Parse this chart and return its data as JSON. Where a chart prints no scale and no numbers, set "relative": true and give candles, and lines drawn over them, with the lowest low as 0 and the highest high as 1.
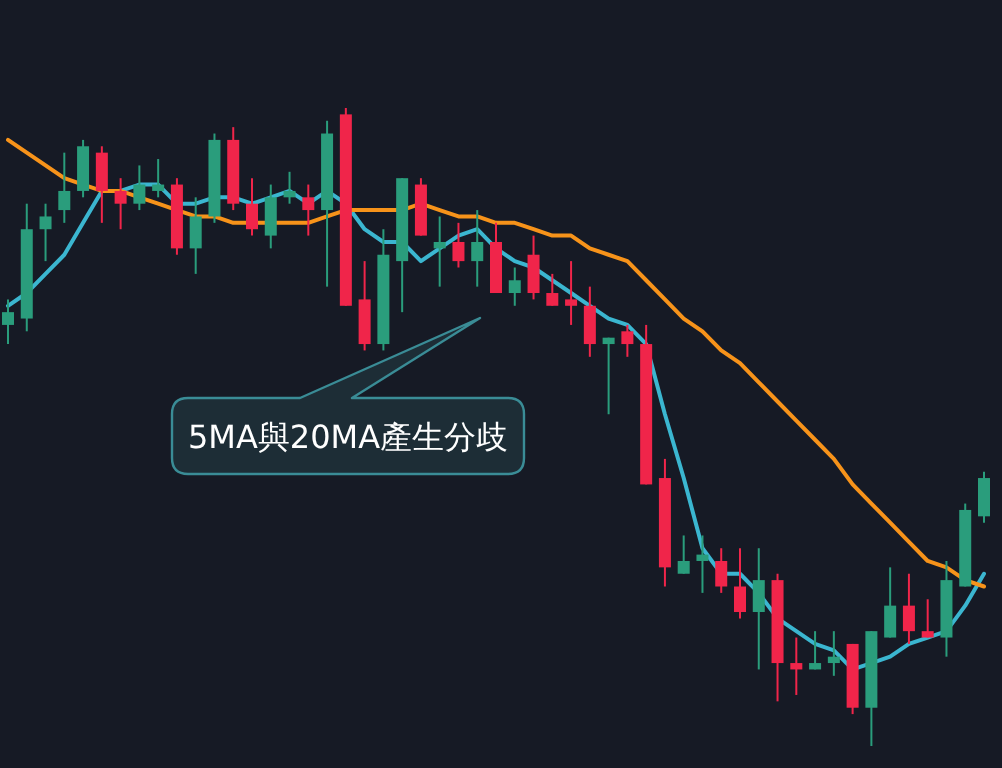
{
  "chart_data": {
    "type": "candlestick",
    "relative": true,
    "categories": [
      null,
      null,
      null,
      null,
      null,
      null,
      null,
      null,
      null,
      null,
      null,
      null,
      null,
      null,
      null,
      null,
      null,
      null,
      null,
      null,
      null,
      null,
      null,
      null,
      null,
      null,
      null,
      null,
      null,
      null,
      null,
      null,
      null,
      null,
      null,
      null,
      null,
      null,
      null,
      null,
      null,
      null,
      null,
      null,
      null,
      null,
      null,
      null,
      null,
      null,
      null,
      null,
      null
    ],
    "ohlc": [
      [
        0.66,
        0.7,
        0.63,
        0.68
      ],
      [
        0.67,
        0.85,
        0.65,
        0.81
      ],
      [
        0.81,
        0.85,
        0.76,
        0.83
      ],
      [
        0.84,
        0.93,
        0.82,
        0.87
      ],
      [
        0.87,
        0.95,
        0.86,
        0.94
      ],
      [
        0.93,
        0.94,
        0.82,
        0.87
      ],
      [
        0.87,
        0.89,
        0.81,
        0.85
      ],
      [
        0.85,
        0.91,
        0.84,
        0.88
      ],
      [
        0.87,
        0.92,
        0.86,
        0.88
      ],
      [
        0.88,
        0.89,
        0.77,
        0.78
      ],
      [
        0.78,
        0.86,
        0.74,
        0.83
      ],
      [
        0.83,
        0.96,
        0.82,
        0.95
      ],
      [
        0.95,
        0.97,
        0.84,
        0.85
      ],
      [
        0.85,
        0.89,
        0.8,
        0.81
      ],
      [
        0.8,
        0.88,
        0.78,
        0.86
      ],
      [
        0.86,
        0.9,
        0.85,
        0.87
      ],
      [
        0.86,
        0.88,
        0.8,
        0.84
      ],
      [
        0.84,
        0.98,
        0.72,
        0.96
      ],
      [
        0.99,
        1.0,
        0.69,
        0.69
      ],
      [
        0.7,
        0.76,
        0.62,
        0.63
      ],
      [
        0.63,
        0.81,
        0.62,
        0.77
      ],
      [
        0.76,
        0.89,
        0.68,
        0.89
      ],
      [
        0.88,
        0.89,
        0.8,
        0.8
      ],
      [
        0.78,
        0.83,
        0.72,
        0.79
      ],
      [
        0.79,
        0.82,
        0.75,
        0.76
      ],
      [
        0.76,
        0.84,
        0.72,
        0.79
      ],
      [
        0.79,
        0.82,
        0.71,
        0.71
      ],
      [
        0.71,
        0.75,
        0.69,
        0.73
      ],
      [
        0.77,
        0.8,
        0.7,
        0.71
      ],
      [
        0.71,
        0.74,
        0.69,
        0.69
      ],
      [
        0.7,
        0.76,
        0.66,
        0.69
      ],
      [
        0.69,
        0.72,
        0.61,
        0.63
      ],
      [
        0.63,
        0.64,
        0.52,
        0.64
      ],
      [
        0.65,
        0.66,
        0.61,
        0.63
      ],
      [
        0.63,
        0.66,
        0.41,
        0.41
      ],
      [
        0.42,
        0.45,
        0.25,
        0.28
      ],
      [
        0.27,
        0.33,
        0.27,
        0.29
      ],
      [
        0.29,
        0.33,
        0.24,
        0.3
      ],
      [
        0.29,
        0.31,
        0.24,
        0.25
      ],
      [
        0.25,
        0.31,
        0.2,
        0.21
      ],
      [
        0.21,
        0.31,
        0.12,
        0.26
      ],
      [
        0.26,
        0.27,
        0.07,
        0.13
      ],
      [
        0.13,
        0.17,
        0.08,
        0.12
      ],
      [
        0.12,
        0.18,
        0.12,
        0.13
      ],
      [
        0.13,
        0.18,
        0.11,
        0.14
      ],
      [
        0.16,
        0.16,
        0.05,
        0.06
      ],
      [
        0.06,
        0.18,
        0.0,
        0.18
      ],
      [
        0.17,
        0.28,
        0.17,
        0.22
      ],
      [
        0.22,
        0.27,
        0.16,
        0.18
      ],
      [
        0.18,
        0.23,
        0.17,
        0.17
      ],
      [
        0.17,
        0.29,
        0.14,
        0.26
      ],
      [
        0.25,
        0.38,
        0.25,
        0.37
      ],
      [
        0.36,
        0.43,
        0.35,
        0.42
      ]
    ],
    "series": [
      {
        "type": "line",
        "color": "#3bb6d0",
        "values": [
          0.69,
          0.71,
          0.74,
          0.77,
          0.82,
          0.87,
          0.87,
          0.88,
          0.88,
          0.85,
          0.85,
          0.86,
          0.86,
          0.85,
          0.86,
          0.87,
          0.85,
          0.87,
          0.85,
          0.81,
          0.79,
          0.79,
          0.76,
          0.78,
          0.8,
          0.81,
          0.78,
          0.76,
          0.75,
          0.73,
          0.71,
          0.69,
          0.67,
          0.66,
          0.63,
          0.52,
          0.42,
          0.31,
          0.27,
          0.27,
          0.24,
          0.2,
          0.18,
          0.16,
          0.15,
          0.12,
          0.13,
          0.14,
          0.16,
          0.17,
          0.18,
          0.22,
          0.27
        ]
      },
      {
        "type": "line",
        "color": "#f7931a",
        "values": [
          0.95,
          0.93,
          0.91,
          0.89,
          0.88,
          0.87,
          0.87,
          0.86,
          0.85,
          0.84,
          0.83,
          0.83,
          0.82,
          0.82,
          0.82,
          0.82,
          0.82,
          0.83,
          0.84,
          0.84,
          0.84,
          0.84,
          0.85,
          0.84,
          0.83,
          0.83,
          0.82,
          0.82,
          0.81,
          0.8,
          0.8,
          0.78,
          0.77,
          0.76,
          0.73,
          0.7,
          0.67,
          0.65,
          0.62,
          0.6,
          0.57,
          0.54,
          0.51,
          0.48,
          0.45,
          0.41,
          0.38,
          0.35,
          0.32,
          0.29,
          0.28,
          0.26,
          0.25
        ]
      }
    ],
    "annotations": [
      "5MA與20MA產生分歧"
    ]
  }
}
